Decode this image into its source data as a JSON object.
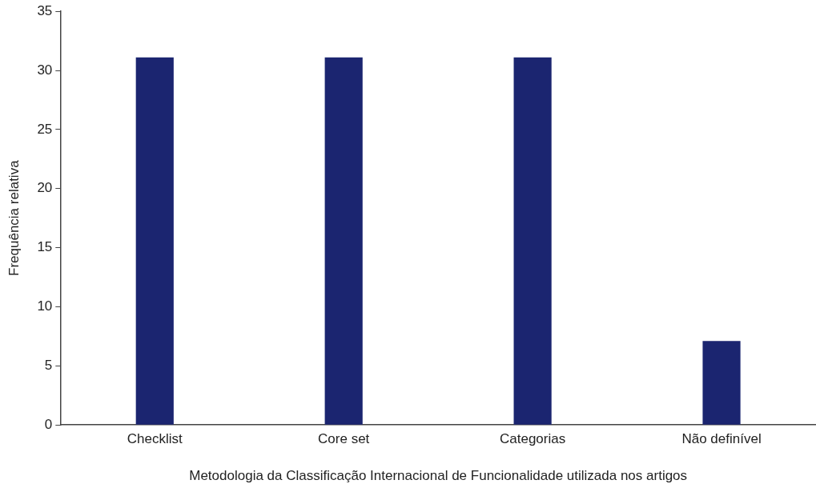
{
  "chart_data": {
    "type": "bar",
    "xlabel": "Metodologia da Classificação Internacional de Funcionalidade utilizada nos artigos",
    "ylabel": "Frequência relativa",
    "categories": [
      "Checklist",
      "Core set",
      "Categorias",
      "Não definível"
    ],
    "values": [
      31.1,
      31.1,
      31.1,
      7.1
    ],
    "color": "#1b2570",
    "ylim": [
      0,
      35
    ],
    "yticks": [
      0,
      5,
      10,
      15,
      20,
      25,
      30,
      35
    ],
    "grid": false,
    "legend": false
  }
}
